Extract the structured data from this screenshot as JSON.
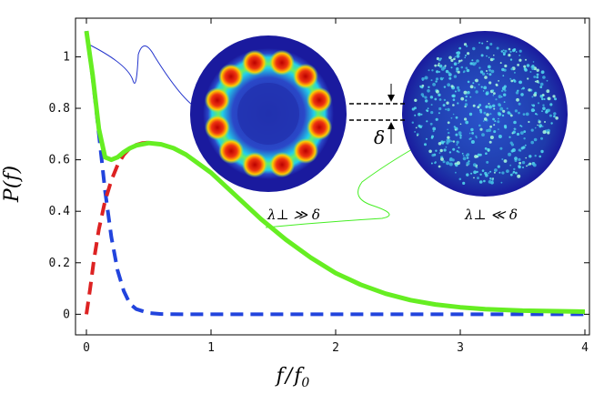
{
  "chart_data": {
    "type": "line",
    "title": "",
    "xlabel": "f / f0",
    "ylabel": "P(f)",
    "xlim": [
      0,
      4
    ],
    "ylim": [
      -0.08,
      1.15
    ],
    "xticks": [
      0,
      1,
      2,
      3,
      4
    ],
    "xtick_labels": [
      "0",
      "1",
      "2",
      "3",
      "4"
    ],
    "yticks": [
      0,
      0.2,
      0.4,
      0.6,
      0.8,
      1
    ],
    "ytick_labels": [
      "0",
      "0.2",
      "0.4",
      "0.6",
      "0.8",
      "1"
    ],
    "series": [
      {
        "name": "blue-dashed",
        "style": "dashed",
        "color": "#2244dd",
        "x": [
          0,
          0.05,
          0.1,
          0.15,
          0.2,
          0.25,
          0.3,
          0.35,
          0.4,
          0.5,
          0.6,
          0.8,
          1.0,
          2.0,
          3.0,
          4.0
        ],
        "y": [
          1.1,
          0.92,
          0.7,
          0.48,
          0.3,
          0.17,
          0.09,
          0.04,
          0.02,
          0.005,
          0.001,
          0,
          0,
          0,
          0,
          0
        ]
      },
      {
        "name": "red-dashed",
        "style": "dashed",
        "color": "#dd2222",
        "x": [
          0,
          0.03,
          0.06,
          0.1,
          0.15,
          0.2,
          0.25,
          0.3,
          0.35,
          0.4,
          0.45,
          0.5
        ],
        "y": [
          0,
          0.1,
          0.21,
          0.33,
          0.44,
          0.52,
          0.58,
          0.62,
          0.645,
          0.658,
          0.665,
          0.667
        ]
      },
      {
        "name": "green-solid",
        "style": "solid",
        "color": "#66ee22",
        "x": [
          0,
          0.05,
          0.1,
          0.15,
          0.2,
          0.25,
          0.3,
          0.35,
          0.4,
          0.5,
          0.6,
          0.7,
          0.8,
          1.0,
          1.2,
          1.4,
          1.6,
          1.8,
          2.0,
          2.2,
          2.4,
          2.6,
          2.8,
          3.0,
          3.2,
          3.5,
          4.0
        ],
        "y": [
          1.1,
          0.93,
          0.72,
          0.61,
          0.6,
          0.61,
          0.63,
          0.645,
          0.656,
          0.665,
          0.66,
          0.645,
          0.62,
          0.55,
          0.46,
          0.37,
          0.29,
          0.22,
          0.16,
          0.115,
          0.08,
          0.055,
          0.038,
          0.027,
          0.02,
          0.014,
          0.01
        ]
      }
    ],
    "annotations": [
      {
        "text": "λ⊥ ≫ δ",
        "target": "left-inset"
      },
      {
        "text": "λ⊥ ≪ δ",
        "target": "right-inset"
      },
      {
        "text": "δ",
        "target": "bracket"
      }
    ]
  },
  "labels": {
    "x_axis_f": "f",
    "x_axis_slash": "/",
    "x_axis_f0": "f",
    "x_axis_f0_sub": "0",
    "y_axis": "P(f)",
    "left_inset_caption": "λ⊥ ≫ δ",
    "right_inset_caption": "λ⊥ ≪ δ",
    "delta_label": "δ"
  },
  "colors": {
    "blue_series": "#2244dd",
    "red_series": "#dd2222",
    "green_series": "#66ee22",
    "inset_background": "#1a1a9e",
    "ring_hot": "#dd1111",
    "ring_warm": "#ffdd00",
    "ring_cool": "#22ccee"
  }
}
